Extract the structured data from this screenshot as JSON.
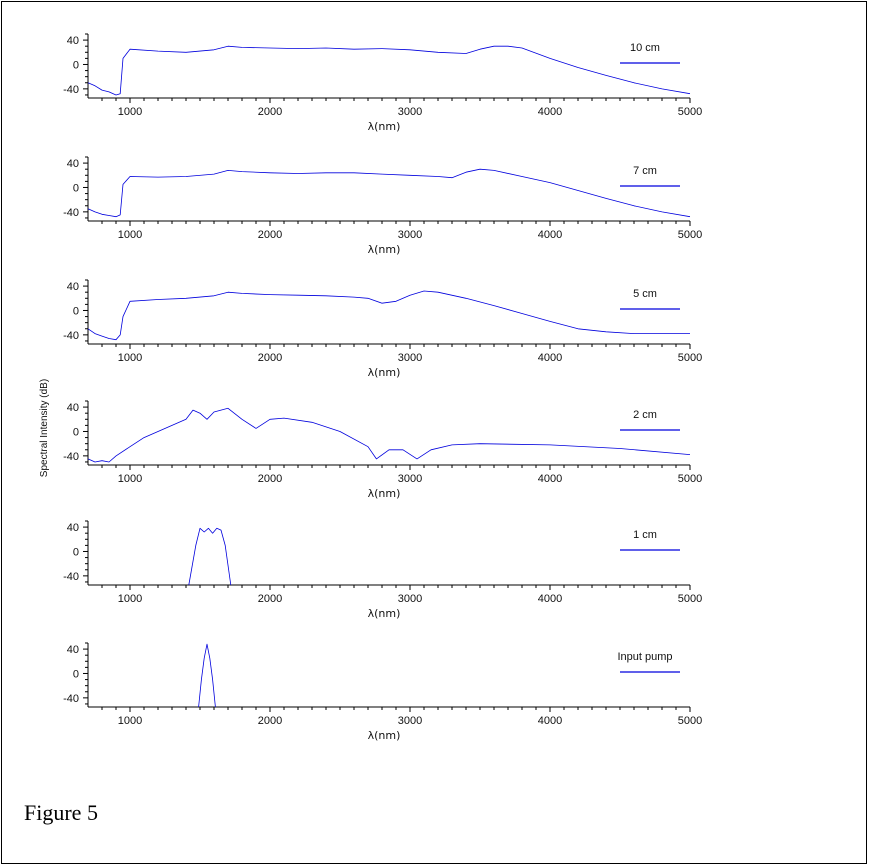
{
  "figure": {
    "caption": "Figure 5",
    "ylabel": "Spectral Intensity (dB)"
  },
  "chart_data": [
    {
      "type": "line",
      "legend": "10 cm",
      "xlabel": "λ(nm)",
      "xlim": [
        700,
        5000
      ],
      "ylim": [
        -55,
        50
      ],
      "xticks": [
        1000,
        2000,
        3000,
        4000,
        5000
      ],
      "yticks": [
        40,
        0,
        -40
      ],
      "color": "#0000dd",
      "series": [
        {
          "x": [
            700,
            750,
            800,
            850,
            900,
            930,
            950,
            1000,
            1200,
            1400,
            1600,
            1700,
            1800,
            2000,
            2200,
            2400,
            2600,
            2800,
            3000,
            3200,
            3400,
            3500,
            3600,
            3700,
            3800,
            4000,
            4200,
            4400,
            4600,
            4800,
            5000
          ],
          "y": [
            -30,
            -35,
            -42,
            -45,
            -50,
            -48,
            10,
            25,
            22,
            20,
            24,
            30,
            28,
            27,
            26,
            27,
            25,
            26,
            24,
            20,
            18,
            25,
            30,
            30,
            27,
            10,
            -5,
            -18,
            -30,
            -40,
            -48
          ]
        }
      ]
    },
    {
      "type": "line",
      "legend": "7 cm",
      "xlabel": "λ(nm)",
      "xlim": [
        700,
        5000
      ],
      "ylim": [
        -55,
        50
      ],
      "xticks": [
        1000,
        2000,
        3000,
        4000,
        5000
      ],
      "yticks": [
        40,
        0,
        -40
      ],
      "color": "#0000dd",
      "series": [
        {
          "x": [
            700,
            750,
            800,
            850,
            900,
            930,
            950,
            1000,
            1200,
            1400,
            1600,
            1700,
            1800,
            2000,
            2200,
            2400,
            2600,
            2800,
            3000,
            3200,
            3300,
            3400,
            3500,
            3600,
            3800,
            4000,
            4200,
            4400,
            4600,
            4800,
            5000
          ],
          "y": [
            -35,
            -40,
            -44,
            -46,
            -48,
            -45,
            5,
            18,
            17,
            18,
            22,
            28,
            26,
            24,
            23,
            24,
            24,
            22,
            20,
            18,
            16,
            25,
            30,
            28,
            18,
            8,
            -5,
            -18,
            -30,
            -40,
            -48
          ]
        }
      ]
    },
    {
      "type": "line",
      "legend": "5 cm",
      "xlabel": "λ(nm)",
      "xlim": [
        700,
        5000
      ],
      "ylim": [
        -55,
        50
      ],
      "xticks": [
        1000,
        2000,
        3000,
        4000,
        5000
      ],
      "yticks": [
        40,
        0,
        -40
      ],
      "color": "#0000dd",
      "series": [
        {
          "x": [
            700,
            750,
            800,
            850,
            900,
            930,
            950,
            1000,
            1200,
            1400,
            1600,
            1700,
            1800,
            2000,
            2200,
            2400,
            2600,
            2700,
            2800,
            2900,
            3000,
            3100,
            3200,
            3400,
            3600,
            3800,
            4000,
            4200,
            4400,
            4600,
            4800,
            5000
          ],
          "y": [
            -30,
            -38,
            -42,
            -46,
            -48,
            -40,
            -10,
            15,
            18,
            20,
            24,
            30,
            28,
            26,
            25,
            24,
            22,
            20,
            12,
            15,
            25,
            32,
            30,
            20,
            8,
            -5,
            -18,
            -30,
            -35,
            -38,
            -38,
            -38
          ]
        }
      ]
    },
    {
      "type": "line",
      "legend": "2 cm",
      "xlabel": "λ(nm)",
      "xlim": [
        700,
        5000
      ],
      "ylim": [
        -55,
        50
      ],
      "xticks": [
        1000,
        2000,
        3000,
        4000,
        5000
      ],
      "yticks": [
        40,
        0,
        -40
      ],
      "color": "#0000dd",
      "series": [
        {
          "x": [
            700,
            750,
            800,
            850,
            900,
            1000,
            1100,
            1200,
            1300,
            1400,
            1450,
            1500,
            1550,
            1600,
            1700,
            1800,
            1900,
            2000,
            2100,
            2300,
            2500,
            2700,
            2760,
            2850,
            2950,
            3050,
            3150,
            3300,
            3500,
            4000,
            4500,
            5000
          ],
          "y": [
            -45,
            -50,
            -48,
            -50,
            -40,
            -25,
            -10,
            0,
            10,
            20,
            35,
            30,
            20,
            32,
            38,
            20,
            5,
            20,
            22,
            15,
            0,
            -25,
            -45,
            -30,
            -30,
            -45,
            -30,
            -22,
            -20,
            -22,
            -28,
            -38
          ]
        }
      ]
    },
    {
      "type": "line",
      "legend": "1 cm",
      "xlabel": "λ(nm)",
      "xlim": [
        700,
        5000
      ],
      "ylim": [
        -55,
        50
      ],
      "xticks": [
        1000,
        2000,
        3000,
        4000,
        5000
      ],
      "yticks": [
        40,
        0,
        -40
      ],
      "color": "#0000dd",
      "series": [
        {
          "x": [
            1420,
            1470,
            1500,
            1530,
            1560,
            1590,
            1620,
            1650,
            1680,
            1720
          ],
          "y": [
            -55,
            10,
            38,
            32,
            38,
            30,
            38,
            35,
            10,
            -55
          ]
        }
      ]
    },
    {
      "type": "line",
      "legend": "Input pump",
      "xlabel": "λ(nm)",
      "xlim": [
        700,
        5000
      ],
      "ylim": [
        -55,
        50
      ],
      "xticks": [
        1000,
        2000,
        3000,
        4000,
        5000
      ],
      "yticks": [
        40,
        0,
        -40
      ],
      "color": "#0000dd",
      "series": [
        {
          "x": [
            1490,
            1510,
            1530,
            1550,
            1570,
            1590,
            1610
          ],
          "y": [
            -55,
            -10,
            25,
            48,
            25,
            -10,
            -55
          ]
        }
      ]
    }
  ]
}
